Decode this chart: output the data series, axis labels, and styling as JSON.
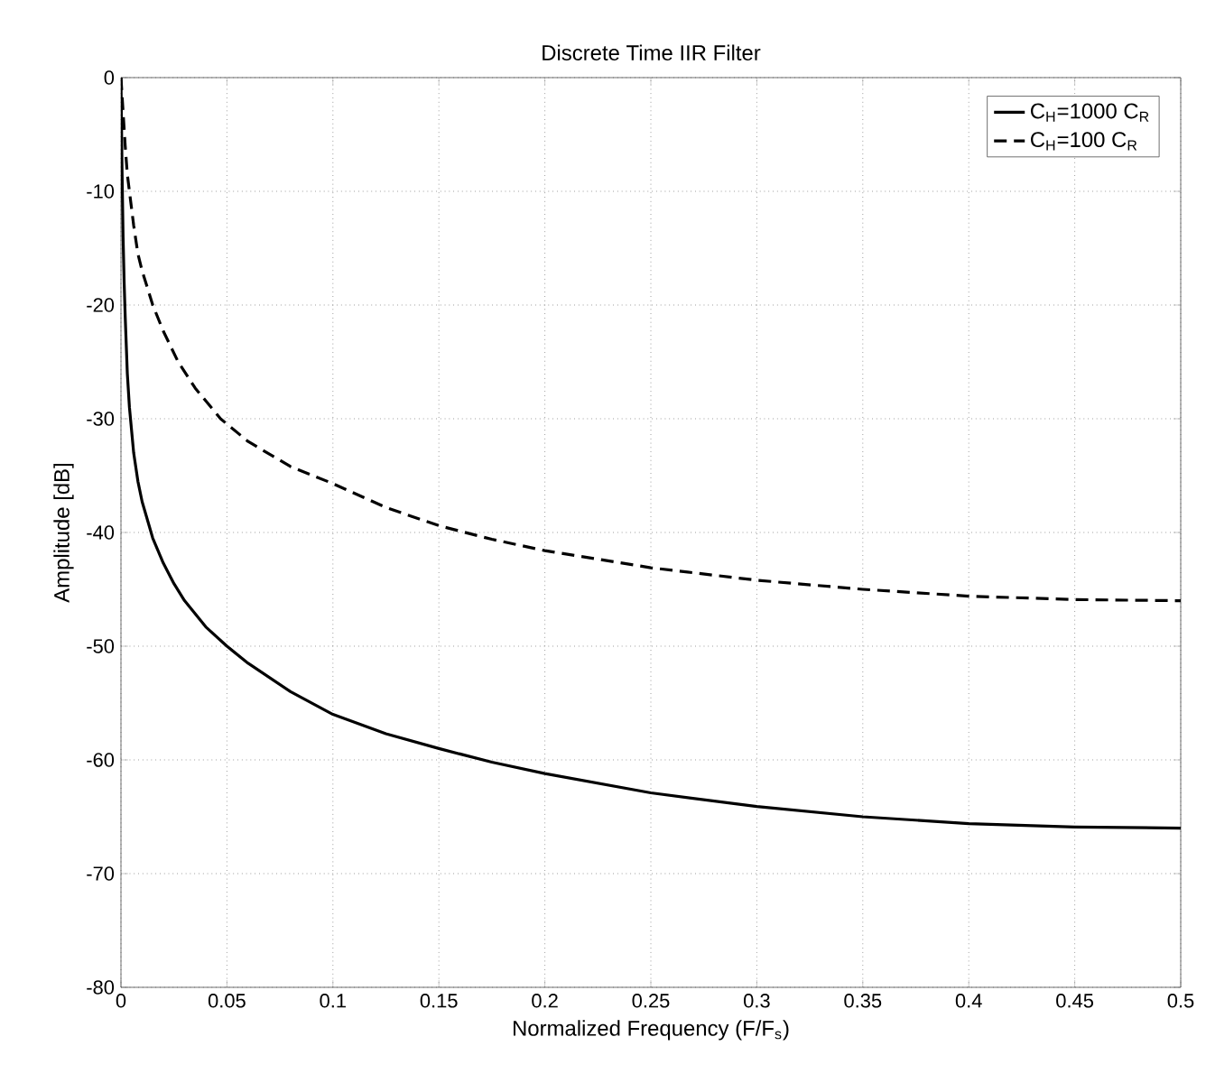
{
  "chart_data": {
    "type": "line",
    "title": "Discrete Time IIR Filter",
    "xlabel": "Normalized Frequency (F/F$_{s}$)",
    "ylabel": "Amplitude [dB]",
    "xlim": [
      0,
      0.5
    ],
    "ylim": [
      -80,
      0
    ],
    "xticks": [
      0,
      0.05,
      0.1,
      0.15,
      0.2,
      0.25,
      0.3,
      0.35,
      0.4,
      0.45,
      0.5
    ],
    "yticks": [
      -80,
      -70,
      -60,
      -50,
      -40,
      -30,
      -20,
      -10,
      0
    ],
    "grid": true,
    "legend": "top right",
    "marker": "none",
    "series": [
      {
        "name": "C$_{H}$=1000 C$_{R}$",
        "color": "#000000",
        "line_style": "solid",
        "x": [
          0,
          0.0005,
          0.001,
          0.0015,
          0.002,
          0.003,
          0.004,
          0.006,
          0.008,
          0.01,
          0.015,
          0.02,
          0.025,
          0.03,
          0.04,
          0.05,
          0.06,
          0.08,
          0.1,
          0.125,
          0.15,
          0.175,
          0.2,
          0.25,
          0.3,
          0.35,
          0.4,
          0.45,
          0.5
        ],
        "values": [
          0,
          -8,
          -14,
          -18,
          -21,
          -26,
          -29,
          -33,
          -35.5,
          -37.3,
          -40.5,
          -42.7,
          -44.5,
          -46,
          -48.3,
          -50,
          -51.5,
          -54,
          -56,
          -57.7,
          -59,
          -60.2,
          -61.2,
          -62.9,
          -64.1,
          -65,
          -65.6,
          -65.9,
          -66
        ]
      },
      {
        "name": "C$_{H}$=100 C$_{R}$",
        "color": "#000000",
        "line_style": "dashed",
        "x": [
          0,
          0.001,
          0.002,
          0.003,
          0.004,
          0.006,
          0.008,
          0.01,
          0.015,
          0.02,
          0.027,
          0.035,
          0.047,
          0.06,
          0.08,
          0.1,
          0.125,
          0.15,
          0.175,
          0.2,
          0.25,
          0.3,
          0.35,
          0.4,
          0.45,
          0.5
        ],
        "values": [
          0,
          -3,
          -6,
          -8.5,
          -10,
          -13,
          -15.5,
          -17,
          -20,
          -22.3,
          -25,
          -27.3,
          -30,
          -32,
          -34.2,
          -35.7,
          -37.8,
          -39.4,
          -40.6,
          -41.6,
          -43.1,
          -44.2,
          -45,
          -45.6,
          -45.9,
          -46
        ]
      }
    ]
  }
}
